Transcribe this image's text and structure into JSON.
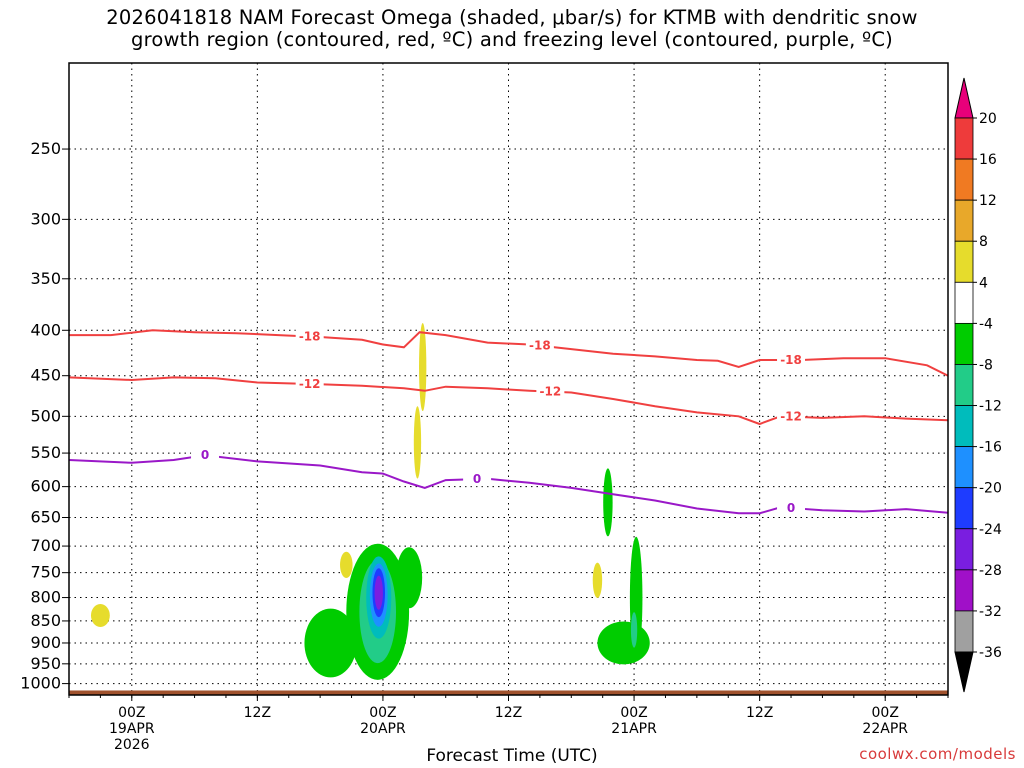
{
  "title": {
    "line1": "2026041818 NAM Forecast Omega (shaded, μbar/s) for KTMB with dendritic snow",
    "line2": "growth region (contoured, red, ºC) and freezing level (contoured, purple, ºC)"
  },
  "xlabel": "Forecast Time (UTC)",
  "credit": "coolwx.com/models",
  "colors": {
    "dgz_contour": "#f04040",
    "freezing_contour": "#9a18c8",
    "terrain": "#a0522d",
    "grid": "#000000"
  },
  "chart_data": {
    "type": "heatmap",
    "y_axis": {
      "scale": "log",
      "range_hpa": [
        1030,
        200
      ],
      "ticks": [
        250,
        300,
        350,
        400,
        450,
        500,
        550,
        600,
        650,
        700,
        750,
        800,
        850,
        900,
        950,
        1000
      ],
      "grid": "dotted"
    },
    "x_axis": {
      "range_hours_utc": [
        "2026-04-18 18Z",
        "2026-04-22 12Z"
      ],
      "ticks": [
        {
          "hour": 6,
          "line1": "00Z",
          "line2": "19APR",
          "line3": "2026"
        },
        {
          "hour": 18,
          "line1": "12Z",
          "line2": "",
          "line3": ""
        },
        {
          "hour": 30,
          "line1": "00Z",
          "line2": "20APR",
          "line3": ""
        },
        {
          "hour": 42,
          "line1": "12Z",
          "line2": "",
          "line3": ""
        },
        {
          "hour": 54,
          "line1": "00Z",
          "line2": "21APR",
          "line3": ""
        },
        {
          "hour": 66,
          "line1": "12Z",
          "line2": "",
          "line3": ""
        },
        {
          "hour": 78,
          "line1": "00Z",
          "line2": "22APR",
          "line3": ""
        }
      ],
      "max_hour": 84
    },
    "colorbar": {
      "labels": [
        "20",
        "16",
        "12",
        "8",
        "4",
        "-4",
        "-8",
        "-12",
        "-16",
        "-20",
        "-24",
        "-28",
        "-32",
        "-36"
      ],
      "colors": [
        "#e8007a",
        "#ee3b3b",
        "#f07a22",
        "#e8a82a",
        "#e6dc2c",
        "#ffffff",
        "#00cc00",
        "#22cc88",
        "#00bcbc",
        "#1e90ff",
        "#1e3cff",
        "#7a1ee0",
        "#a010c8",
        "#a0a0a0",
        "#000000"
      ]
    },
    "contours": [
      {
        "label": "-18",
        "color": "#f04040",
        "points": [
          [
            0,
            405
          ],
          [
            4,
            405
          ],
          [
            8,
            400
          ],
          [
            12,
            402
          ],
          [
            16,
            403
          ],
          [
            20,
            405
          ],
          [
            24,
            407
          ],
          [
            28,
            410
          ],
          [
            30,
            415
          ],
          [
            32,
            418
          ],
          [
            33.5,
            402
          ],
          [
            36,
            405
          ],
          [
            40,
            413
          ],
          [
            44,
            415
          ],
          [
            48,
            420
          ],
          [
            52,
            425
          ],
          [
            56,
            428
          ],
          [
            60,
            432
          ],
          [
            62,
            433
          ],
          [
            64,
            440
          ],
          [
            66,
            432
          ],
          [
            70,
            432
          ],
          [
            74,
            430
          ],
          [
            78,
            430
          ],
          [
            82,
            438
          ],
          [
            84,
            450
          ]
        ],
        "label_hours": [
          23,
          45,
          69
        ]
      },
      {
        "label": "-12",
        "color": "#f04040",
        "points": [
          [
            0,
            452
          ],
          [
            6,
            455
          ],
          [
            10,
            452
          ],
          [
            14,
            453
          ],
          [
            18,
            458
          ],
          [
            24,
            460
          ],
          [
            28,
            462
          ],
          [
            32,
            465
          ],
          [
            34,
            468
          ],
          [
            36,
            463
          ],
          [
            40,
            465
          ],
          [
            44,
            468
          ],
          [
            48,
            470
          ],
          [
            52,
            478
          ],
          [
            56,
            487
          ],
          [
            60,
            495
          ],
          [
            64,
            500
          ],
          [
            66,
            510
          ],
          [
            68,
            500
          ],
          [
            72,
            502
          ],
          [
            76,
            500
          ],
          [
            80,
            503
          ],
          [
            84,
            505
          ]
        ],
        "label_hours": [
          23,
          46,
          69
        ]
      },
      {
        "label": "0",
        "color": "#9a18c8",
        "points": [
          [
            0,
            560
          ],
          [
            6,
            564
          ],
          [
            10,
            560
          ],
          [
            13,
            553
          ],
          [
            18,
            562
          ],
          [
            24,
            568
          ],
          [
            28,
            578
          ],
          [
            30,
            580
          ],
          [
            32,
            592
          ],
          [
            34,
            602
          ],
          [
            36,
            590
          ],
          [
            40,
            588
          ],
          [
            44,
            594
          ],
          [
            48,
            602
          ],
          [
            52,
            612
          ],
          [
            56,
            622
          ],
          [
            60,
            635
          ],
          [
            64,
            643
          ],
          [
            66,
            643
          ],
          [
            68,
            633
          ],
          [
            72,
            638
          ],
          [
            76,
            640
          ],
          [
            80,
            636
          ],
          [
            84,
            642
          ]
        ],
        "label_hours": [
          13,
          39,
          69
        ]
      }
    ],
    "omega_features": [
      {
        "value": 4,
        "center_hour": 3.0,
        "center_hpa": 838,
        "width_hours": 1.8,
        "height_hpa": 50
      },
      {
        "value": 4,
        "center_hour": 26.5,
        "center_hpa": 735,
        "width_hours": 1.2,
        "height_hpa": 50
      },
      {
        "value": 4,
        "center_hour": 33.8,
        "center_hpa": 440,
        "width_hours": 0.7,
        "height_hpa": 100
      },
      {
        "value": 4,
        "center_hour": 33.3,
        "center_hpa": 535,
        "width_hours": 0.7,
        "height_hpa": 100
      },
      {
        "value": -8,
        "center_hour": 29.5,
        "center_hpa": 830,
        "width_hours": 6,
        "height_hpa": 290
      },
      {
        "value": -8,
        "center_hour": 32.5,
        "center_hpa": 760,
        "width_hours": 2.5,
        "height_hpa": 120
      },
      {
        "value": -8,
        "center_hour": 25.0,
        "center_hpa": 900,
        "width_hours": 5,
        "height_hpa": 160
      },
      {
        "value": -12,
        "center_hour": 29.5,
        "center_hpa": 830,
        "width_hours": 3.5,
        "height_hpa": 220
      },
      {
        "value": -16,
        "center_hour": 29.6,
        "center_hpa": 800,
        "width_hours": 2.4,
        "height_hpa": 170
      },
      {
        "value": -20,
        "center_hour": 29.6,
        "center_hpa": 795,
        "width_hours": 1.7,
        "height_hpa": 130
      },
      {
        "value": -24,
        "center_hour": 29.6,
        "center_hpa": 790,
        "width_hours": 1.2,
        "height_hpa": 100
      },
      {
        "value": -28,
        "center_hour": 29.6,
        "center_hpa": 790,
        "width_hours": 0.8,
        "height_hpa": 70
      },
      {
        "value": 4,
        "center_hour": 50.5,
        "center_hpa": 765,
        "width_hours": 0.9,
        "height_hpa": 70
      },
      {
        "value": -8,
        "center_hour": 51.5,
        "center_hpa": 625,
        "width_hours": 0.9,
        "height_hpa": 110
      },
      {
        "value": -8,
        "center_hour": 53.0,
        "center_hpa": 900,
        "width_hours": 5,
        "height_hpa": 100
      },
      {
        "value": -8,
        "center_hour": 54.2,
        "center_hpa": 800,
        "width_hours": 1.2,
        "height_hpa": 250
      },
      {
        "value": -12,
        "center_hour": 54.0,
        "center_hpa": 870,
        "width_hours": 0.6,
        "height_hpa": 80
      }
    ],
    "terrain_hpa": 1018
  }
}
